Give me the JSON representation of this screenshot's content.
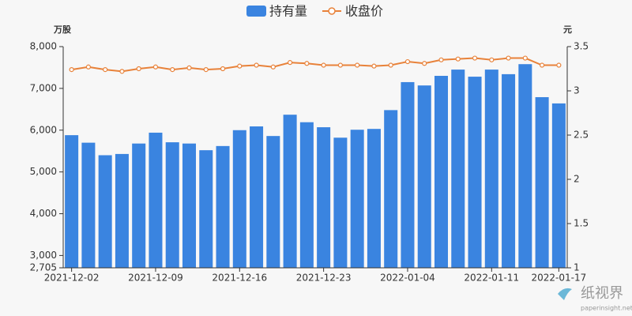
{
  "chart_data": {
    "type": "bar_line",
    "legend": [
      "持有量",
      "收盘价"
    ],
    "ylabel": "万股",
    "y2label": "元",
    "categories": [
      "2021-12-02",
      null,
      null,
      null,
      null,
      "2021-12-09",
      null,
      null,
      null,
      null,
      "2021-12-16",
      null,
      null,
      null,
      null,
      "2021-12-23",
      null,
      null,
      null,
      null,
      "2022-01-04",
      null,
      null,
      null,
      null,
      "2022-01-11",
      null,
      null,
      null,
      "2022-01-17"
    ],
    "series": [
      {
        "name": "持有量",
        "type": "bar",
        "color": "#3a84e0",
        "values": [
          5880,
          5700,
          5400,
          5430,
          5680,
          5940,
          5710,
          5680,
          5520,
          5620,
          6000,
          6090,
          5860,
          6370,
          6190,
          6070,
          5820,
          6010,
          6030,
          6480,
          7150,
          7070,
          7300,
          7450,
          7280,
          7450,
          7340,
          7580,
          6790,
          6640
        ]
      },
      {
        "name": "收盘价",
        "type": "line",
        "axis": "y2",
        "color": "#e8823a",
        "values": [
          3.24,
          3.27,
          3.24,
          3.22,
          3.25,
          3.27,
          3.24,
          3.26,
          3.24,
          3.25,
          3.28,
          3.29,
          3.27,
          3.32,
          3.31,
          3.29,
          3.29,
          3.29,
          3.28,
          3.29,
          3.33,
          3.31,
          3.35,
          3.36,
          3.37,
          3.35,
          3.37,
          3.37,
          3.29,
          3.29
        ]
      }
    ],
    "ylim": [
      2705,
      8000
    ],
    "yticks": [
      {
        "value": 2705,
        "label": "2,705"
      },
      {
        "value": 3000,
        "label": "3,000"
      },
      {
        "value": 4000,
        "label": "4,000"
      },
      {
        "value": 5000,
        "label": "5,000"
      },
      {
        "value": 6000,
        "label": "6,000"
      },
      {
        "value": 7000,
        "label": "7,000"
      },
      {
        "value": 8000,
        "label": "8,000"
      }
    ],
    "y2lim": [
      1,
      3.5
    ],
    "y2ticks": [
      1,
      1.5,
      2,
      2.5,
      3,
      3.5
    ],
    "watermark": [
      "纸视界",
      "paperinsight.net"
    ]
  }
}
